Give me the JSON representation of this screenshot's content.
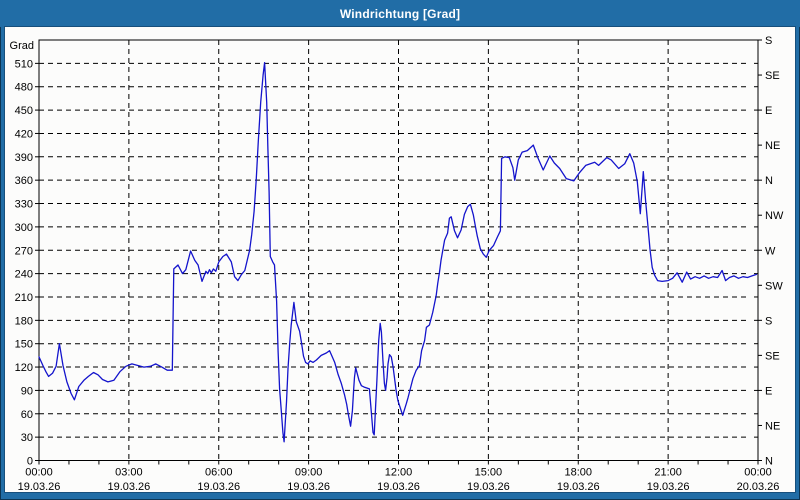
{
  "window": {
    "title": "Windrichtung [Grad]"
  },
  "colors": {
    "titlebar_bg": "#216da6",
    "border_dark": "#123f63",
    "content_bg": "#fcfcfb",
    "line": "#1414cc",
    "grid": "#000000",
    "text": "#000000",
    "title_text": "#ffffff"
  },
  "chart_data": {
    "type": "line",
    "title": "Windrichtung [Grad]",
    "y_axis": {
      "unit_label": "Grad",
      "min": 0,
      "max": 540,
      "tick_step_deg": 30,
      "tick_labels": [
        0,
        30,
        60,
        90,
        120,
        150,
        180,
        210,
        240,
        270,
        300,
        330,
        360,
        390,
        420,
        450,
        480,
        510
      ]
    },
    "right_axis": {
      "ticks": [
        {
          "deg": 0,
          "label": "N"
        },
        {
          "deg": 45,
          "label": "NE"
        },
        {
          "deg": 90,
          "label": "E"
        },
        {
          "deg": 135,
          "label": "SE"
        },
        {
          "deg": 180,
          "label": "S"
        },
        {
          "deg": 225,
          "label": "SW"
        },
        {
          "deg": 270,
          "label": "W"
        },
        {
          "deg": 315,
          "label": "NW"
        },
        {
          "deg": 360,
          "label": "N"
        },
        {
          "deg": 405,
          "label": "NE"
        },
        {
          "deg": 450,
          "label": "E"
        },
        {
          "deg": 495,
          "label": "SE"
        },
        {
          "deg": 540,
          "label": "S"
        }
      ]
    },
    "x_axis": {
      "min_hours": 0,
      "max_hours": 24,
      "minor_tick_step_hours": 1,
      "major_ticks": [
        {
          "hour": 0,
          "time": "00:00",
          "date": "19.03.26"
        },
        {
          "hour": 3,
          "time": "03:00",
          "date": "19.03.26"
        },
        {
          "hour": 6,
          "time": "06:00",
          "date": "19.03.26"
        },
        {
          "hour": 9,
          "time": "09:00",
          "date": "19.03.26"
        },
        {
          "hour": 12,
          "time": "12:00",
          "date": "19.03.26"
        },
        {
          "hour": 15,
          "time": "15:00",
          "date": "19.03.26"
        },
        {
          "hour": 18,
          "time": "18:00",
          "date": "19.03.26"
        },
        {
          "hour": 21,
          "time": "21:00",
          "date": "19.03.26"
        },
        {
          "hour": 24,
          "time": "00:00",
          "date": "20.03.26"
        }
      ]
    },
    "grid": {
      "horizontal_step_deg": 30,
      "vertical_step_hours": 3,
      "style": "dashed"
    },
    "series": [
      {
        "name": "Windrichtung",
        "color": "#1414cc",
        "points": [
          [
            0.0,
            133
          ],
          [
            0.13,
            122
          ],
          [
            0.23,
            114
          ],
          [
            0.32,
            108
          ],
          [
            0.45,
            112
          ],
          [
            0.57,
            121
          ],
          [
            0.68,
            150
          ],
          [
            0.8,
            122
          ],
          [
            0.93,
            101
          ],
          [
            1.07,
            86
          ],
          [
            1.18,
            78
          ],
          [
            1.33,
            95
          ],
          [
            1.5,
            103
          ],
          [
            1.65,
            108
          ],
          [
            1.82,
            113
          ],
          [
            1.97,
            110
          ],
          [
            2.12,
            104
          ],
          [
            2.3,
            101
          ],
          [
            2.5,
            103
          ],
          [
            2.7,
            114
          ],
          [
            2.9,
            121
          ],
          [
            3.1,
            124
          ],
          [
            3.3,
            122
          ],
          [
            3.5,
            120
          ],
          [
            3.72,
            121
          ],
          [
            3.9,
            124
          ],
          [
            4.1,
            120
          ],
          [
            4.28,
            116
          ],
          [
            4.45,
            116
          ],
          [
            4.5,
            246
          ],
          [
            4.64,
            251
          ],
          [
            4.79,
            240
          ],
          [
            4.9,
            245
          ],
          [
            5.06,
            269
          ],
          [
            5.2,
            257
          ],
          [
            5.31,
            251
          ],
          [
            5.44,
            230
          ],
          [
            5.57,
            243
          ],
          [
            5.63,
            240
          ],
          [
            5.69,
            245
          ],
          [
            5.75,
            241
          ],
          [
            5.82,
            246
          ],
          [
            5.9,
            243
          ],
          [
            6.0,
            255
          ],
          [
            6.14,
            262
          ],
          [
            6.26,
            265
          ],
          [
            6.42,
            255
          ],
          [
            6.53,
            236
          ],
          [
            6.64,
            231
          ],
          [
            6.76,
            239
          ],
          [
            6.87,
            244
          ],
          [
            7.03,
            270
          ],
          [
            7.1,
            290
          ],
          [
            7.18,
            320
          ],
          [
            7.25,
            360
          ],
          [
            7.32,
            410
          ],
          [
            7.4,
            460
          ],
          [
            7.48,
            495
          ],
          [
            7.53,
            511
          ],
          [
            7.6,
            460
          ],
          [
            7.64,
            400
          ],
          [
            7.68,
            345
          ],
          [
            7.72,
            262
          ],
          [
            7.8,
            255
          ],
          [
            7.86,
            251
          ],
          [
            7.93,
            205
          ],
          [
            7.98,
            140
          ],
          [
            8.03,
            92
          ],
          [
            8.09,
            62
          ],
          [
            8.14,
            36
          ],
          [
            8.18,
            24
          ],
          [
            8.26,
            75
          ],
          [
            8.31,
            118
          ],
          [
            8.37,
            152
          ],
          [
            8.42,
            174
          ],
          [
            8.51,
            203
          ],
          [
            8.59,
            178
          ],
          [
            8.7,
            166
          ],
          [
            8.76,
            152
          ],
          [
            8.83,
            134
          ],
          [
            8.9,
            126
          ],
          [
            8.98,
            124
          ],
          [
            9.05,
            128
          ],
          [
            9.15,
            126
          ],
          [
            9.26,
            129
          ],
          [
            9.42,
            135
          ],
          [
            9.59,
            138
          ],
          [
            9.7,
            141
          ],
          [
            9.87,
            126
          ],
          [
            9.98,
            111
          ],
          [
            10.09,
            99
          ],
          [
            10.2,
            84
          ],
          [
            10.27,
            72
          ],
          [
            10.33,
            58
          ],
          [
            10.4,
            44
          ],
          [
            10.46,
            64
          ],
          [
            10.5,
            90
          ],
          [
            10.53,
            107
          ],
          [
            10.57,
            119
          ],
          [
            10.68,
            103
          ],
          [
            10.76,
            96
          ],
          [
            10.87,
            94
          ],
          [
            11.03,
            92
          ],
          [
            11.09,
            64
          ],
          [
            11.15,
            36
          ],
          [
            11.19,
            33
          ],
          [
            11.23,
            64
          ],
          [
            11.28,
            103
          ],
          [
            11.31,
            129
          ],
          [
            11.34,
            154
          ],
          [
            11.39,
            176
          ],
          [
            11.43,
            165
          ],
          [
            11.48,
            129
          ],
          [
            11.53,
            99
          ],
          [
            11.57,
            90
          ],
          [
            11.62,
            107
          ],
          [
            11.65,
            124
          ],
          [
            11.7,
            136
          ],
          [
            11.76,
            133
          ],
          [
            11.82,
            120
          ],
          [
            11.87,
            105
          ],
          [
            11.92,
            90
          ],
          [
            11.98,
            77
          ],
          [
            12.03,
            71
          ],
          [
            12.14,
            58
          ],
          [
            12.26,
            73
          ],
          [
            12.32,
            81
          ],
          [
            12.38,
            90
          ],
          [
            12.48,
            105
          ],
          [
            12.59,
            116
          ],
          [
            12.7,
            122
          ],
          [
            12.77,
            141
          ],
          [
            12.87,
            154
          ],
          [
            12.93,
            171
          ],
          [
            13.03,
            174
          ],
          [
            13.14,
            190
          ],
          [
            13.26,
            212
          ],
          [
            13.31,
            227
          ],
          [
            13.37,
            242
          ],
          [
            13.42,
            257
          ],
          [
            13.48,
            270
          ],
          [
            13.54,
            283
          ],
          [
            13.64,
            292
          ],
          [
            13.7,
            311
          ],
          [
            13.76,
            313
          ],
          [
            13.87,
            295
          ],
          [
            13.97,
            286
          ],
          [
            14.09,
            296
          ],
          [
            14.2,
            316
          ],
          [
            14.31,
            326
          ],
          [
            14.4,
            329
          ],
          [
            14.5,
            315
          ],
          [
            14.57,
            300
          ],
          [
            14.63,
            288
          ],
          [
            14.73,
            272
          ],
          [
            14.83,
            265
          ],
          [
            14.93,
            261
          ],
          [
            15.03,
            270
          ],
          [
            15.17,
            276
          ],
          [
            15.3,
            287
          ],
          [
            15.4,
            295
          ],
          [
            15.44,
            388
          ],
          [
            15.55,
            390
          ],
          [
            15.7,
            389
          ],
          [
            15.82,
            376
          ],
          [
            15.88,
            360
          ],
          [
            16.0,
            386
          ],
          [
            16.13,
            396
          ],
          [
            16.3,
            398
          ],
          [
            16.5,
            405
          ],
          [
            16.65,
            389
          ],
          [
            16.83,
            373
          ],
          [
            17.05,
            391
          ],
          [
            17.2,
            382
          ],
          [
            17.38,
            375
          ],
          [
            17.6,
            362
          ],
          [
            17.85,
            359
          ],
          [
            18.05,
            370
          ],
          [
            18.25,
            379
          ],
          [
            18.55,
            383
          ],
          [
            18.68,
            379
          ],
          [
            18.95,
            389
          ],
          [
            19.1,
            386
          ],
          [
            19.35,
            375
          ],
          [
            19.55,
            381
          ],
          [
            19.72,
            394
          ],
          [
            19.85,
            382
          ],
          [
            19.97,
            358
          ],
          [
            20.07,
            317
          ],
          [
            20.17,
            371
          ],
          [
            20.25,
            332
          ],
          [
            20.32,
            303
          ],
          [
            20.4,
            270
          ],
          [
            20.47,
            248
          ],
          [
            20.55,
            238
          ],
          [
            20.65,
            231
          ],
          [
            20.8,
            230
          ],
          [
            21.0,
            231
          ],
          [
            21.15,
            234
          ],
          [
            21.3,
            241
          ],
          [
            21.47,
            229
          ],
          [
            21.62,
            242
          ],
          [
            21.75,
            233
          ],
          [
            21.9,
            236
          ],
          [
            22.05,
            234
          ],
          [
            22.2,
            237
          ],
          [
            22.35,
            234
          ],
          [
            22.5,
            236
          ],
          [
            22.65,
            235
          ],
          [
            22.8,
            244
          ],
          [
            22.92,
            231
          ],
          [
            23.05,
            235
          ],
          [
            23.2,
            237
          ],
          [
            23.35,
            234
          ],
          [
            23.5,
            236
          ],
          [
            23.65,
            235
          ],
          [
            23.8,
            237
          ],
          [
            23.95,
            239
          ]
        ]
      }
    ]
  }
}
